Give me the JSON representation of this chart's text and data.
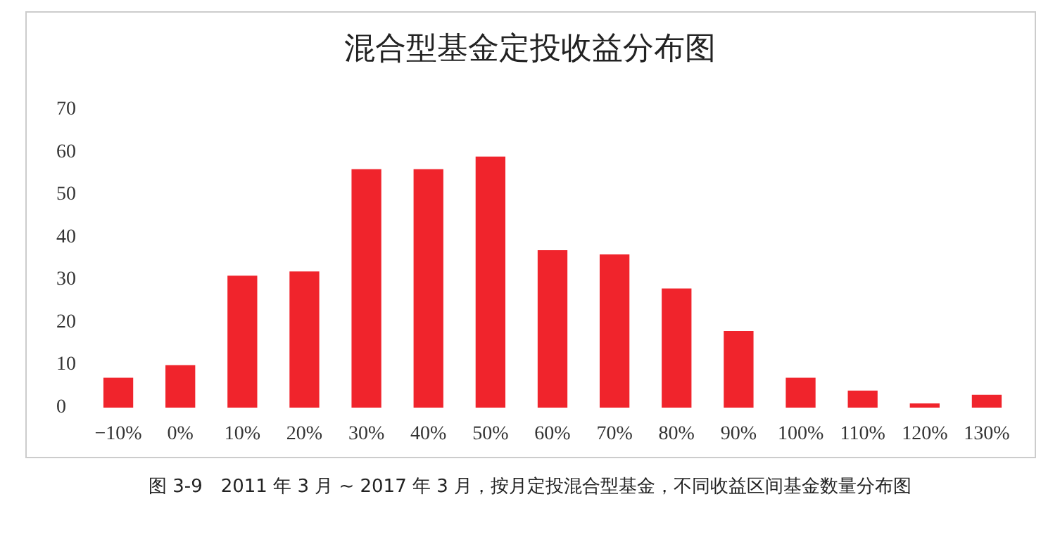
{
  "chart_data": {
    "type": "bar",
    "title": "混合型基金定投收益分布图",
    "categories": [
      "−10%",
      "0%",
      "10%",
      "20%",
      "30%",
      "40%",
      "50%",
      "60%",
      "70%",
      "80%",
      "90%",
      "100%",
      "110%",
      "120%",
      "130%"
    ],
    "values": [
      7,
      10,
      31,
      32,
      56,
      56,
      59,
      37,
      36,
      28,
      18,
      7,
      4,
      1,
      3
    ],
    "color": "#f0242c",
    "ylim": [
      0,
      70
    ],
    "yticks": [
      0,
      10,
      20,
      30,
      40,
      50,
      60,
      70
    ],
    "grid": false,
    "annotations": [
      "图 3-9　2011 年 3 月 ~ 2017 年 3 月，按月定投混合型基金，不同收益区间基金数量分布图"
    ]
  }
}
